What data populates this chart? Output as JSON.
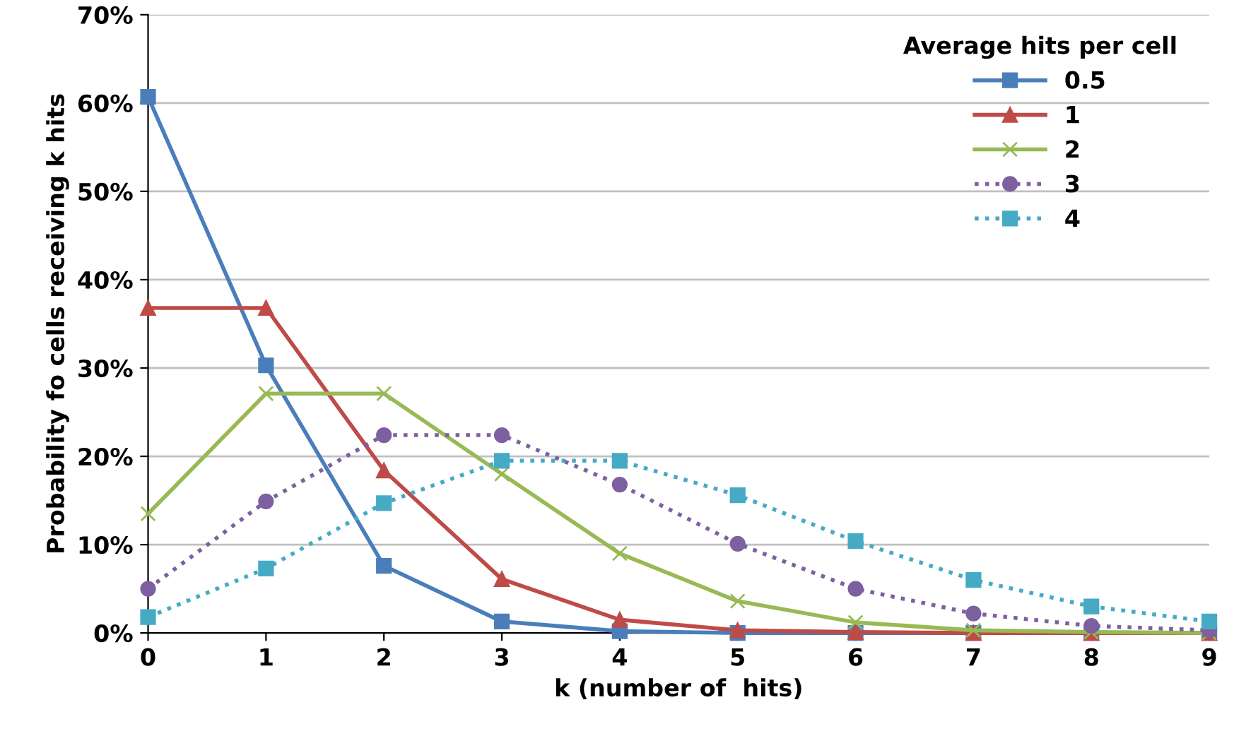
{
  "chart_data": {
    "type": "line",
    "xlabel": "k (number of  hits)",
    "ylabel": "Probability fo cells receiving k hits",
    "legend_title": "Average hits per cell",
    "legend": "top right",
    "grid": "y",
    "x": [
      0,
      1,
      2,
      3,
      4,
      5,
      6,
      7,
      8,
      9
    ],
    "xlim": [
      0,
      9
    ],
    "xticks": [
      0,
      1,
      2,
      3,
      4,
      5,
      6,
      7,
      8,
      9
    ],
    "ylim": [
      0,
      70
    ],
    "yticks": [
      {
        "value": 0,
        "label": "0%"
      },
      {
        "value": 10,
        "label": "10%"
      },
      {
        "value": 20,
        "label": "20%"
      },
      {
        "value": 30,
        "label": "30%"
      },
      {
        "value": 40,
        "label": "40%"
      },
      {
        "value": 50,
        "label": "50%"
      },
      {
        "value": 60,
        "label": "60%"
      },
      {
        "value": 70,
        "label": "70%"
      }
    ],
    "series": [
      {
        "name": "0.5",
        "color": "#4a7ebb",
        "marker": "square",
        "line_style": "solid",
        "values": [
          60.7,
          30.3,
          7.6,
          1.3,
          0.2,
          0.0,
          0.0,
          0.0,
          0.0,
          0.0
        ]
      },
      {
        "name": "1",
        "color": "#be4b48",
        "marker": "triangle",
        "line_style": "solid",
        "values": [
          36.8,
          36.8,
          18.4,
          6.1,
          1.5,
          0.3,
          0.1,
          0.0,
          0.0,
          0.0
        ]
      },
      {
        "name": "2",
        "color": "#98b954",
        "marker": "cross",
        "line_style": "solid",
        "values": [
          13.5,
          27.1,
          27.1,
          18.0,
          9.0,
          3.6,
          1.2,
          0.3,
          0.1,
          0.0
        ]
      },
      {
        "name": "3",
        "color": "#7d60a0",
        "marker": "circle",
        "line_style": "dotted",
        "values": [
          5.0,
          14.9,
          22.4,
          22.4,
          16.8,
          10.1,
          5.0,
          2.2,
          0.8,
          0.3
        ]
      },
      {
        "name": "4",
        "color": "#46aac5",
        "marker": "square",
        "line_style": "dotted",
        "values": [
          1.8,
          7.3,
          14.7,
          19.5,
          19.5,
          15.6,
          10.4,
          6.0,
          3.0,
          1.3
        ]
      }
    ]
  }
}
